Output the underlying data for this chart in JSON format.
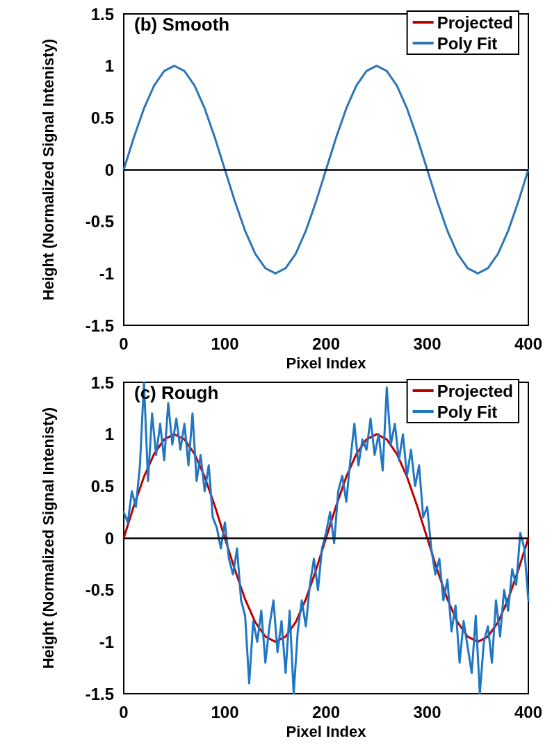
{
  "chart_data": [
    {
      "type": "line",
      "annotations": [
        "(b) Smooth"
      ],
      "xlabel": "Pixel Index",
      "ylabel": "Height (Normalized Signal Intenisty)",
      "xlim": [
        0,
        400
      ],
      "xticks": [
        0,
        100,
        200,
        300,
        400
      ],
      "ylim": [
        -1.5,
        1.5
      ],
      "yticks": [
        -1.5,
        -1,
        -0.5,
        0,
        0.5,
        1,
        1.5
      ],
      "grid": false,
      "legend": "top right",
      "marker": "none",
      "line_style": "solid",
      "ref_lines": [
        {
          "axis": "y",
          "value": 0,
          "color": "#000000"
        }
      ],
      "x": [
        0,
        10,
        20,
        30,
        40,
        50,
        60,
        70,
        80,
        90,
        100,
        110,
        120,
        130,
        140,
        150,
        160,
        170,
        180,
        190,
        200,
        210,
        220,
        230,
        240,
        250,
        260,
        270,
        280,
        290,
        300,
        310,
        320,
        330,
        340,
        350,
        360,
        370,
        380,
        390,
        400
      ],
      "series": [
        {
          "name": "Projected",
          "color": "#c00000",
          "values": [
            null,
            null,
            null,
            null,
            null,
            null,
            null,
            null,
            null,
            null,
            null,
            null,
            null,
            null,
            null,
            null,
            null,
            null,
            null,
            null,
            null,
            null,
            null,
            null,
            null,
            null,
            null,
            null,
            null,
            null,
            null,
            null,
            null,
            null,
            null,
            null,
            null,
            null,
            null,
            null,
            null
          ]
        },
        {
          "name": "Poly Fit",
          "color": "#2e75b6",
          "values": [
            0,
            0.31,
            0.59,
            0.81,
            0.95,
            1,
            0.95,
            0.81,
            0.59,
            0.31,
            0,
            -0.31,
            -0.59,
            -0.81,
            -0.95,
            -1,
            -0.95,
            -0.81,
            -0.59,
            -0.31,
            0,
            0.31,
            0.59,
            0.81,
            0.95,
            1,
            0.95,
            0.81,
            0.59,
            0.31,
            0,
            -0.31,
            -0.59,
            -0.81,
            -0.95,
            -1,
            -0.95,
            -0.81,
            -0.59,
            -0.31,
            0
          ]
        }
      ]
    },
    {
      "type": "line",
      "annotations": [
        "(c) Rough"
      ],
      "xlabel": "Pixel Index",
      "ylabel": "Height (Normalized Signal Intenisty)",
      "xlim": [
        0,
        400
      ],
      "xticks": [
        0,
        100,
        200,
        300,
        400
      ],
      "ylim": [
        -1.5,
        1.5
      ],
      "yticks": [
        -1.5,
        -1,
        -0.5,
        0,
        0.5,
        1,
        1.5
      ],
      "grid": false,
      "legend": "top right",
      "marker": "none",
      "line_style": "solid",
      "ref_lines": [
        {
          "axis": "y",
          "value": 0,
          "color": "#000000"
        }
      ],
      "series": [
        {
          "name": "Projected",
          "color": "#c00000",
          "x": [
            0,
            10,
            20,
            30,
            40,
            50,
            60,
            70,
            80,
            90,
            100,
            110,
            120,
            130,
            140,
            150,
            160,
            170,
            180,
            190,
            200,
            210,
            220,
            230,
            240,
            250,
            260,
            270,
            280,
            290,
            300,
            310,
            320,
            330,
            340,
            350,
            360,
            370,
            380,
            390,
            400
          ],
          "values": [
            0,
            0.31,
            0.59,
            0.81,
            0.95,
            1,
            0.95,
            0.81,
            0.59,
            0.31,
            0,
            -0.31,
            -0.59,
            -0.81,
            -0.95,
            -1,
            -0.95,
            -0.81,
            -0.59,
            -0.31,
            0,
            0.31,
            0.59,
            0.81,
            0.95,
            1,
            0.95,
            0.81,
            0.59,
            0.31,
            0,
            -0.31,
            -0.59,
            -0.81,
            -0.95,
            -1,
            -0.95,
            -0.81,
            -0.59,
            -0.31,
            0
          ]
        },
        {
          "name": "Poly Fit",
          "color": "#1f77c4",
          "x": [
            0,
            4,
            8,
            12,
            16,
            20,
            24,
            28,
            32,
            36,
            40,
            44,
            48,
            52,
            56,
            60,
            64,
            68,
            72,
            76,
            80,
            84,
            88,
            92,
            96,
            100,
            104,
            108,
            112,
            116,
            120,
            124,
            128,
            132,
            136,
            140,
            144,
            148,
            152,
            156,
            160,
            164,
            168,
            172,
            176,
            180,
            184,
            188,
            192,
            196,
            200,
            204,
            208,
            212,
            216,
            220,
            224,
            228,
            232,
            236,
            240,
            244,
            248,
            252,
            256,
            260,
            264,
            268,
            272,
            276,
            280,
            284,
            288,
            292,
            296,
            300,
            304,
            308,
            312,
            316,
            320,
            324,
            328,
            332,
            336,
            340,
            344,
            348,
            352,
            356,
            360,
            364,
            368,
            372,
            376,
            380,
            384,
            388,
            392,
            396,
            400
          ],
          "values": [
            0.25,
            0.15,
            0.45,
            0.3,
            0.7,
            1.5,
            0.55,
            1.2,
            0.8,
            1.1,
            0.75,
            1.3,
            0.9,
            1.15,
            0.85,
            1.1,
            0.7,
            1.2,
            0.55,
            0.8,
            0.45,
            0.7,
            0.2,
            0.1,
            -0.1,
            0.15,
            -0.2,
            -0.35,
            -0.1,
            -0.6,
            -0.75,
            -1.4,
            -0.8,
            -1,
            -0.7,
            -1.2,
            -0.85,
            -0.6,
            -1.1,
            -0.8,
            -1.3,
            -0.7,
            -1.5,
            -0.9,
            -0.6,
            -0.85,
            -0.45,
            -0.2,
            -0.5,
            -0.1,
            0.05,
            0.25,
            -0.05,
            0.45,
            0.6,
            0.35,
            0.75,
            1.1,
            0.7,
            0.95,
            0.85,
            1.15,
            0.8,
            1,
            0.65,
            1.45,
            0.9,
            1.1,
            0.75,
            1,
            0.6,
            0.85,
            0.5,
            0.7,
            0.2,
            0.3,
            -0.1,
            -0.35,
            -0.2,
            -0.6,
            -0.4,
            -0.9,
            -0.65,
            -1.2,
            -0.8,
            -1.05,
            -1.3,
            -0.75,
            -1.5,
            -1,
            -0.85,
            -1.2,
            -0.6,
            -0.95,
            -0.5,
            -0.7,
            -0.3,
            -0.45,
            0.05,
            -0.1,
            -0.6
          ]
        }
      ]
    }
  ]
}
